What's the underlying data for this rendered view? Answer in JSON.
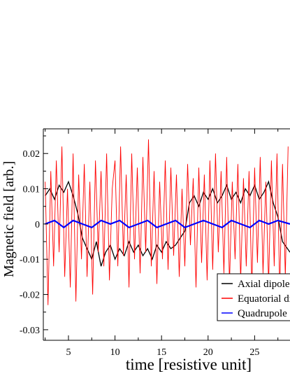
{
  "chart_data": {
    "type": "line",
    "title": "",
    "xlabel": "time [resistive unit]",
    "ylabel": "Magnetic field [arb.]",
    "xlim": [
      2.3,
      28.8
    ],
    "ylim": [
      -0.033,
      0.027
    ],
    "x_ticks": [
      5,
      10,
      15,
      20,
      25
    ],
    "x_tick_labels": [
      "5",
      "10",
      "15",
      "20",
      "25"
    ],
    "y_ticks": [
      0.02,
      0.01,
      0,
      -0.01,
      -0.02,
      -0.03
    ],
    "y_tick_labels": [
      "0.02",
      "0.01",
      "0",
      "-0.01",
      "-0.02",
      "-0.03"
    ],
    "grid": false,
    "legend_position": "bottom-right",
    "series": [
      {
        "name": "Axial dipole",
        "color": "#000000",
        "x": [
          2.5,
          3.0,
          3.5,
          4.0,
          4.5,
          5.0,
          5.5,
          6.0,
          6.5,
          7.0,
          7.5,
          8.0,
          8.5,
          9.0,
          9.5,
          10.0,
          10.5,
          11.0,
          11.5,
          12.0,
          12.5,
          13.0,
          13.5,
          14.0,
          14.5,
          15.0,
          15.5,
          16.0,
          16.5,
          17.0,
          17.5,
          18.0,
          18.5,
          19.0,
          19.5,
          20.0,
          20.5,
          21.0,
          21.5,
          22.0,
          22.5,
          23.0,
          23.5,
          24.0,
          24.5,
          25.0,
          25.5,
          26.0,
          26.5,
          27.0,
          27.5,
          28.0,
          28.8
        ],
        "y": [
          0.008,
          0.01,
          0.007,
          0.011,
          0.009,
          0.012,
          0.008,
          0.003,
          -0.004,
          -0.007,
          -0.01,
          -0.005,
          -0.012,
          -0.008,
          -0.006,
          -0.01,
          -0.007,
          -0.009,
          -0.005,
          -0.008,
          -0.006,
          -0.009,
          -0.007,
          -0.01,
          -0.006,
          -0.008,
          -0.005,
          -0.007,
          -0.006,
          -0.004,
          -0.002,
          0.006,
          0.008,
          0.005,
          0.009,
          0.007,
          0.01,
          0.006,
          0.008,
          0.011,
          0.007,
          0.009,
          0.006,
          0.01,
          0.008,
          0.011,
          0.007,
          0.009,
          0.012,
          0.006,
          0.002,
          -0.005,
          -0.008
        ]
      },
      {
        "name": "Equatorial dipole",
        "color": "#ff0000",
        "x": [
          2.5,
          2.8,
          3.1,
          3.4,
          3.7,
          4.0,
          4.3,
          4.6,
          4.9,
          5.2,
          5.5,
          5.8,
          6.1,
          6.4,
          6.7,
          7.0,
          7.3,
          7.6,
          7.9,
          8.2,
          8.5,
          8.8,
          9.1,
          9.4,
          9.7,
          10.0,
          10.3,
          10.6,
          10.9,
          11.2,
          11.5,
          11.8,
          12.1,
          12.4,
          12.7,
          13.0,
          13.3,
          13.6,
          13.9,
          14.2,
          14.5,
          14.8,
          15.1,
          15.4,
          15.7,
          16.0,
          16.3,
          16.6,
          16.9,
          17.2,
          17.5,
          17.8,
          18.1,
          18.4,
          18.7,
          19.0,
          19.3,
          19.6,
          19.9,
          20.2,
          20.5,
          20.8,
          21.1,
          21.4,
          21.7,
          22.0,
          22.3,
          22.6,
          22.9,
          23.2,
          23.5,
          23.8,
          24.1,
          24.4,
          24.7,
          25.0,
          25.3,
          25.6,
          25.9,
          26.2,
          26.5,
          26.8,
          27.1,
          27.4,
          27.7,
          28.0,
          28.3,
          28.6
        ],
        "y": [
          0.012,
          -0.023,
          0.015,
          -0.012,
          0.018,
          -0.008,
          0.022,
          -0.015,
          0.01,
          -0.018,
          0.02,
          -0.022,
          0.014,
          -0.01,
          0.017,
          -0.015,
          0.012,
          -0.02,
          0.018,
          -0.008,
          0.015,
          -0.012,
          0.02,
          -0.016,
          0.01,
          0.018,
          -0.012,
          0.022,
          -0.009,
          0.014,
          -0.018,
          0.02,
          -0.01,
          0.016,
          -0.014,
          0.019,
          -0.008,
          0.024,
          -0.012,
          0.015,
          -0.017,
          0.012,
          -0.01,
          0.018,
          -0.013,
          0.016,
          -0.009,
          0.014,
          -0.015,
          0.01,
          -0.012,
          0.017,
          -0.006,
          0.013,
          -0.018,
          0.016,
          -0.011,
          0.014,
          -0.016,
          0.018,
          -0.013,
          0.02,
          -0.008,
          0.015,
          -0.014,
          0.019,
          -0.017,
          0.012,
          -0.01,
          0.017,
          -0.016,
          0.013,
          -0.012,
          0.015,
          -0.018,
          0.016,
          -0.011,
          0.019,
          -0.014,
          0.012,
          -0.017,
          0.018,
          -0.012,
          0.02,
          -0.019,
          0.017,
          -0.015,
          0.022
        ]
      },
      {
        "name": "Quadrupole",
        "color": "#0000ff",
        "x": [
          2.5,
          3.5,
          4.5,
          5.5,
          6.5,
          7.5,
          8.5,
          9.5,
          10.5,
          11.5,
          12.5,
          13.5,
          14.5,
          15.5,
          16.5,
          17.5,
          18.5,
          19.5,
          20.5,
          21.5,
          22.5,
          23.5,
          24.5,
          25.5,
          26.5,
          27.5,
          28.8
        ],
        "y": [
          0.0,
          0.001,
          -0.001,
          0.001,
          0.0,
          -0.001,
          0.001,
          0.0,
          0.001,
          -0.001,
          0.0,
          0.001,
          -0.001,
          0.0,
          0.001,
          -0.001,
          0.0,
          0.001,
          0.0,
          -0.001,
          0.001,
          0.0,
          -0.001,
          0.001,
          0.0,
          0.001,
          0.0
        ]
      }
    ],
    "legend_labels": [
      "Axial dipole",
      "Equatorial dipole",
      "Quadrupole"
    ]
  }
}
